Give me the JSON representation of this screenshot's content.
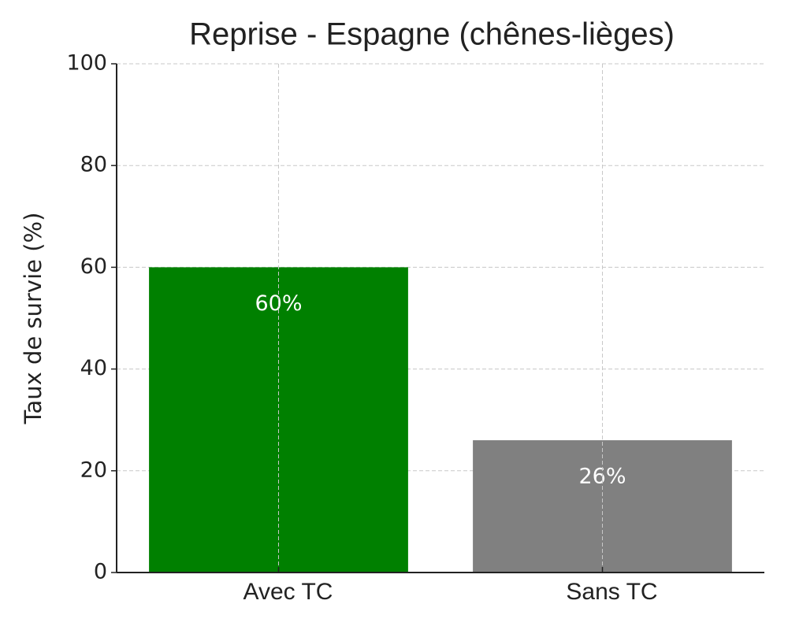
{
  "chart_data": {
    "type": "bar",
    "title": "Reprise - Espagne (chênes-lièges)",
    "y_label": "Taux de survie (%)",
    "categories": [
      "Avec TC",
      "Sans TC"
    ],
    "values": [
      60,
      26
    ],
    "value_labels": [
      "60%",
      "26%"
    ],
    "colors": [
      "#008000",
      "#808080"
    ],
    "ylim": [
      0,
      100
    ],
    "yticks": [
      0,
      20,
      40,
      60,
      80,
      100
    ],
    "grid": true
  }
}
